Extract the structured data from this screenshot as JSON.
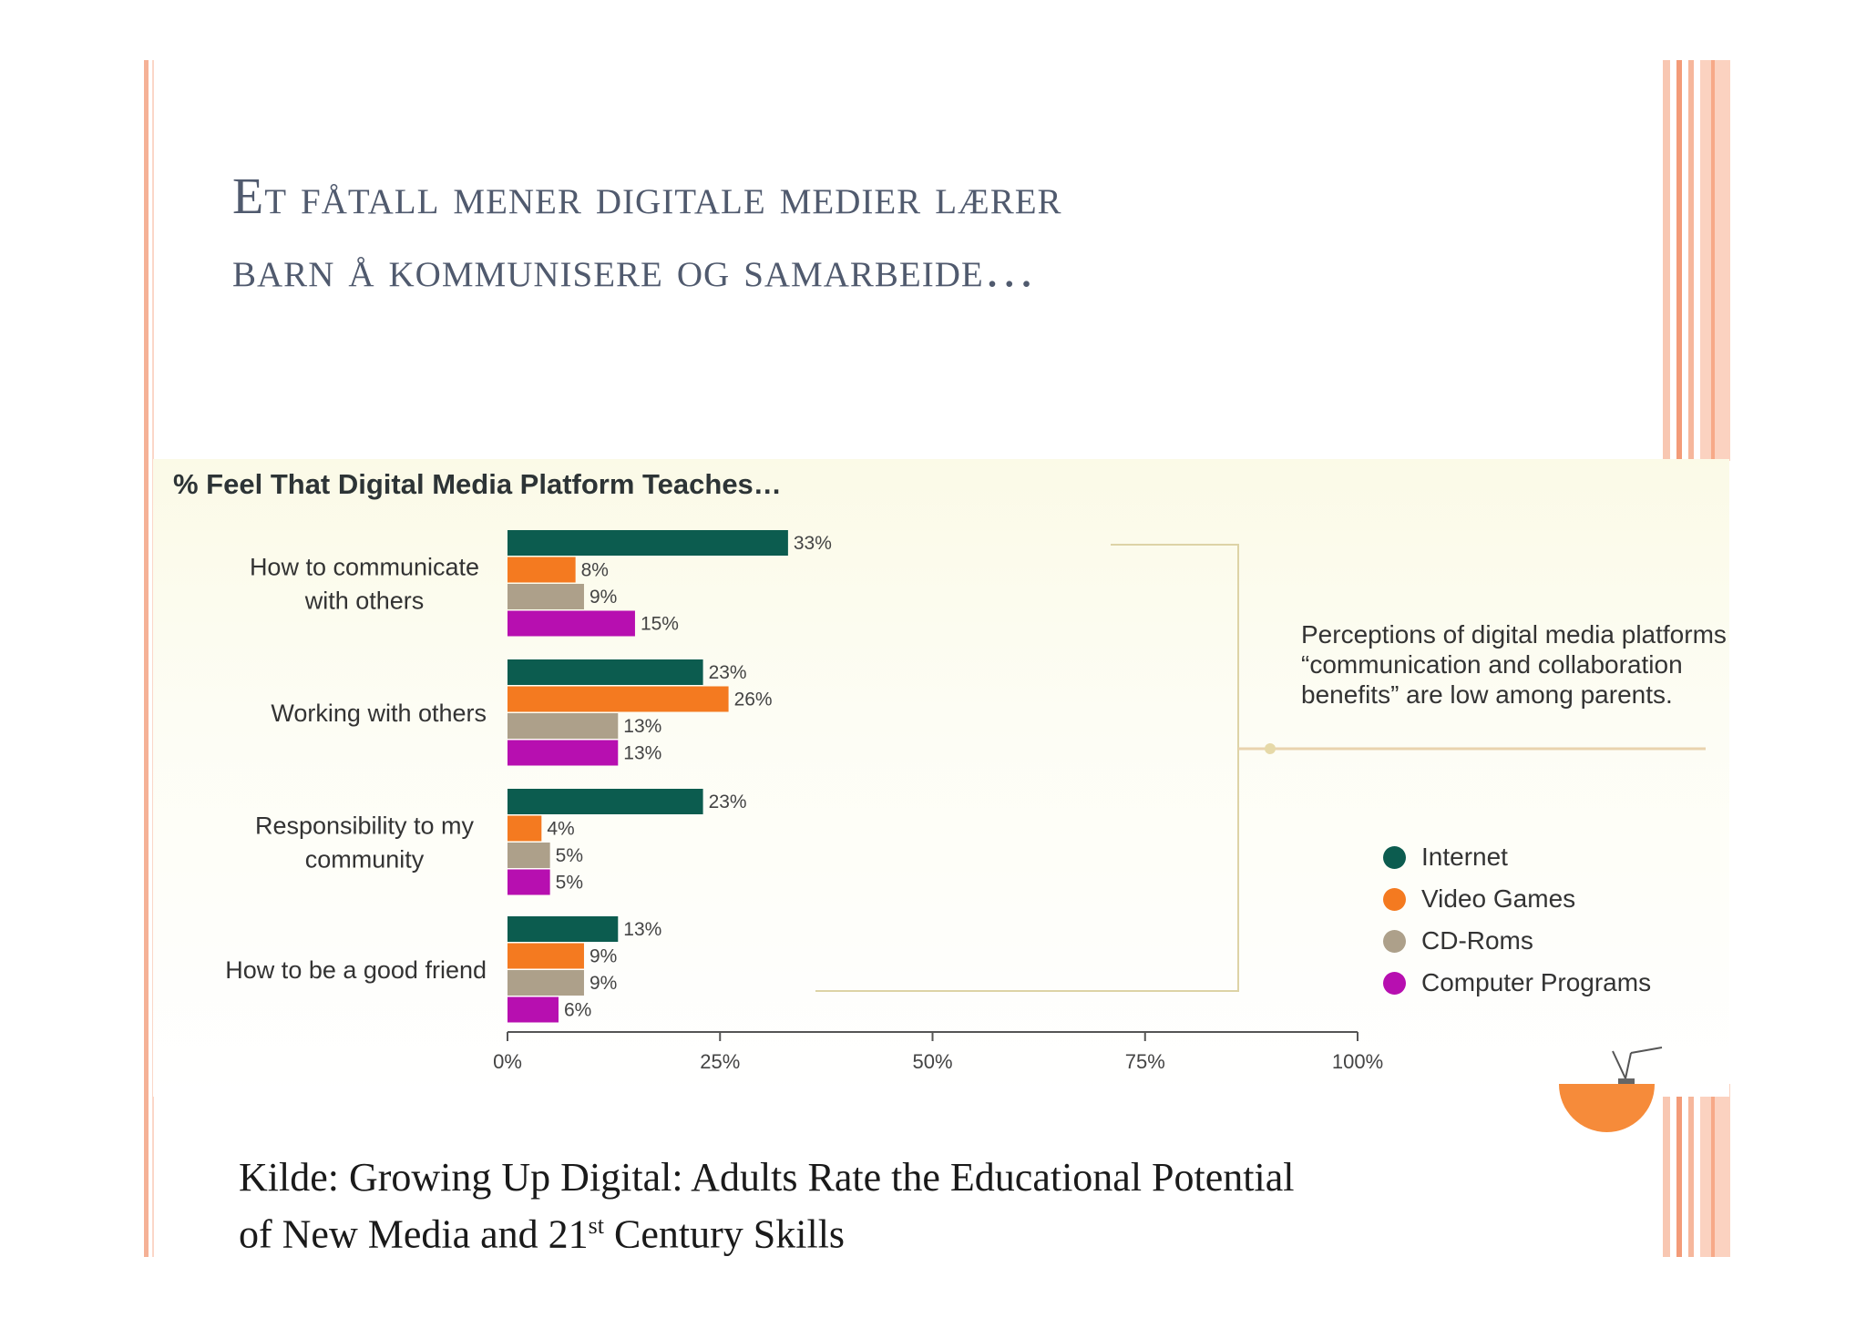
{
  "slide": {
    "title": "Et fåtall mener digitale medier lærer\nbarn å kommunisere og samarbeide…",
    "source_prefix": "Kilde: Growing Up Digital: Adults Rate the Educational Potential",
    "source_line2_start": "of New Media and 21",
    "source_sup": "st",
    "source_line2_end": " Century Skills"
  },
  "annotation": "Perceptions of digital media platforms “communication and collaboration benefits” are low among parents.",
  "colors": {
    "accent_orange": "#f68b3a",
    "internet": "#0c5c4f",
    "video_games": "#f47a20",
    "cd_roms": "#ada08a",
    "computer_programs": "#b70fb0"
  },
  "chart_data": {
    "type": "bar",
    "orientation": "horizontal",
    "title": "% Feel That Digital Media Platform Teaches…",
    "categories": [
      "How to communicate\nwith others",
      "Working with others",
      "Responsibility to my\ncommunity",
      "How to be a good friend"
    ],
    "series": [
      {
        "name": "Internet",
        "color": "#0c5c4f",
        "values": [
          33,
          23,
          23,
          13
        ],
        "labels": [
          "33%",
          "23%",
          "23%",
          "13%"
        ]
      },
      {
        "name": "Video Games",
        "color": "#f47a20",
        "values": [
          8,
          26,
          4,
          9
        ],
        "labels": [
          "8%",
          "26%",
          "4%",
          "9%"
        ]
      },
      {
        "name": "CD-Roms",
        "color": "#ada08a",
        "values": [
          9,
          13,
          5,
          9
        ],
        "labels": [
          "9%",
          "13%",
          "5%",
          "9%"
        ]
      },
      {
        "name": "Computer Programs",
        "color": "#b70fb0",
        "values": [
          15,
          13,
          5,
          6
        ],
        "labels": [
          "15%",
          "13%",
          "5%",
          "6%"
        ]
      }
    ],
    "xlim": [
      0,
      100
    ],
    "xticks": [
      0,
      25,
      50,
      75,
      100
    ],
    "xtick_labels": [
      "0%",
      "25%",
      "50%",
      "75%",
      "100%"
    ],
    "legend_position": "right",
    "grid": false
  }
}
